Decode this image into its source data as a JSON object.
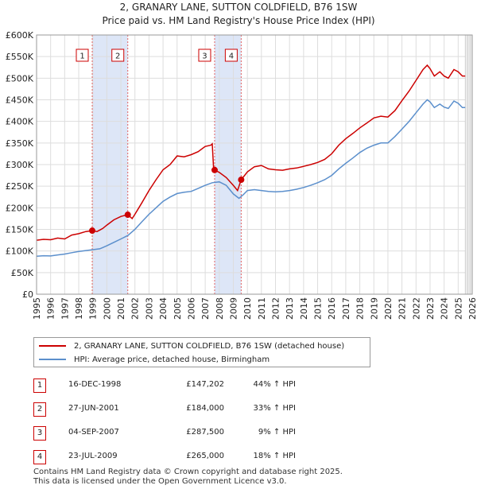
{
  "chart_data": {
    "type": "line",
    "title": "2, GRANARY LANE, SUTTON COLDFIELD, B76 1SW",
    "subtitle": "Price paid vs. HM Land Registry's House Price Index (HPI)",
    "xlim": [
      1995,
      2026
    ],
    "ylim": [
      0,
      600000
    ],
    "y_ticks": [
      0,
      50000,
      100000,
      150000,
      200000,
      250000,
      300000,
      350000,
      400000,
      450000,
      500000,
      550000,
      600000
    ],
    "y_tick_labels": [
      "£0",
      "£50K",
      "£100K",
      "£150K",
      "£200K",
      "£250K",
      "£300K",
      "£350K",
      "£400K",
      "£450K",
      "£500K",
      "£550K",
      "£600K"
    ],
    "x_tick_labels": [
      "1995",
      "1996",
      "1997",
      "1998",
      "1999",
      "2000",
      "2001",
      "2002",
      "2003",
      "2004",
      "2005",
      "2006",
      "2007",
      "2008",
      "2009",
      "2010",
      "2011",
      "2012",
      "2013",
      "2014",
      "2015",
      "2016",
      "2017",
      "2018",
      "2019",
      "2020",
      "2021",
      "2022",
      "2023",
      "2024",
      "2025",
      "2026"
    ],
    "series": [
      {
        "name": "2, GRANARY LANE, SUTTON COLDFIELD, B76 1SW (detached house)",
        "color": "#cc0000",
        "points": [
          [
            1995.0,
            125000
          ],
          [
            1995.5,
            127000
          ],
          [
            1996.0,
            126000
          ],
          [
            1996.5,
            130000
          ],
          [
            1997.0,
            128000
          ],
          [
            1997.5,
            137000
          ],
          [
            1998.0,
            140000
          ],
          [
            1998.5,
            145000
          ],
          [
            1998.96,
            147202
          ],
          [
            1999.3,
            145000
          ],
          [
            1999.7,
            152000
          ],
          [
            2000.0,
            160000
          ],
          [
            2000.5,
            172000
          ],
          [
            2001.0,
            180000
          ],
          [
            2001.49,
            184000
          ],
          [
            2001.8,
            175000
          ],
          [
            2002.0,
            185000
          ],
          [
            2002.5,
            212000
          ],
          [
            2003.0,
            240000
          ],
          [
            2003.5,
            265000
          ],
          [
            2004.0,
            288000
          ],
          [
            2004.5,
            300000
          ],
          [
            2005.0,
            320000
          ],
          [
            2005.5,
            318000
          ],
          [
            2006.0,
            323000
          ],
          [
            2006.5,
            330000
          ],
          [
            2007.0,
            342000
          ],
          [
            2007.4,
            345000
          ],
          [
            2007.5,
            348000
          ],
          [
            2007.6,
            290000
          ],
          [
            2007.67,
            287500
          ],
          [
            2008.0,
            282000
          ],
          [
            2008.5,
            270000
          ],
          [
            2009.0,
            252000
          ],
          [
            2009.3,
            240000
          ],
          [
            2009.56,
            265000
          ],
          [
            2010.0,
            283000
          ],
          [
            2010.5,
            295000
          ],
          [
            2011.0,
            298000
          ],
          [
            2011.5,
            290000
          ],
          [
            2012.0,
            288000
          ],
          [
            2012.5,
            287000
          ],
          [
            2013.0,
            290000
          ],
          [
            2013.5,
            292000
          ],
          [
            2014.0,
            296000
          ],
          [
            2014.5,
            300000
          ],
          [
            2015.0,
            305000
          ],
          [
            2015.5,
            312000
          ],
          [
            2016.0,
            325000
          ],
          [
            2016.5,
            345000
          ],
          [
            2017.0,
            360000
          ],
          [
            2017.5,
            372000
          ],
          [
            2018.0,
            385000
          ],
          [
            2018.5,
            396000
          ],
          [
            2019.0,
            408000
          ],
          [
            2019.5,
            412000
          ],
          [
            2020.0,
            410000
          ],
          [
            2020.5,
            425000
          ],
          [
            2021.0,
            448000
          ],
          [
            2021.5,
            470000
          ],
          [
            2022.0,
            495000
          ],
          [
            2022.5,
            520000
          ],
          [
            2022.8,
            530000
          ],
          [
            2023.0,
            522000
          ],
          [
            2023.3,
            505000
          ],
          [
            2023.7,
            515000
          ],
          [
            2024.0,
            505000
          ],
          [
            2024.3,
            500000
          ],
          [
            2024.7,
            520000
          ],
          [
            2025.0,
            515000
          ],
          [
            2025.3,
            505000
          ],
          [
            2025.5,
            505000
          ]
        ]
      },
      {
        "name": "HPI: Average price, detached house, Birmingham",
        "color": "#5b8fcc",
        "points": [
          [
            1995.0,
            88000
          ],
          [
            1995.5,
            89000
          ],
          [
            1996.0,
            88500
          ],
          [
            1996.5,
            91000
          ],
          [
            1997.0,
            93000
          ],
          [
            1997.5,
            96000
          ],
          [
            1998.0,
            99000
          ],
          [
            1998.5,
            101000
          ],
          [
            1999.0,
            103000
          ],
          [
            1999.5,
            105000
          ],
          [
            2000.0,
            112000
          ],
          [
            2000.5,
            120000
          ],
          [
            2001.0,
            128000
          ],
          [
            2001.5,
            136000
          ],
          [
            2002.0,
            150000
          ],
          [
            2002.5,
            168000
          ],
          [
            2003.0,
            185000
          ],
          [
            2003.5,
            200000
          ],
          [
            2004.0,
            215000
          ],
          [
            2004.5,
            225000
          ],
          [
            2005.0,
            233000
          ],
          [
            2005.5,
            236000
          ],
          [
            2006.0,
            238000
          ],
          [
            2006.5,
            245000
          ],
          [
            2007.0,
            252000
          ],
          [
            2007.5,
            258000
          ],
          [
            2008.0,
            260000
          ],
          [
            2008.5,
            252000
          ],
          [
            2009.0,
            232000
          ],
          [
            2009.4,
            222000
          ],
          [
            2009.7,
            230000
          ],
          [
            2010.0,
            240000
          ],
          [
            2010.5,
            242000
          ],
          [
            2011.0,
            240000
          ],
          [
            2011.5,
            238000
          ],
          [
            2012.0,
            237000
          ],
          [
            2012.5,
            238000
          ],
          [
            2013.0,
            240000
          ],
          [
            2013.5,
            243000
          ],
          [
            2014.0,
            247000
          ],
          [
            2014.5,
            252000
          ],
          [
            2015.0,
            258000
          ],
          [
            2015.5,
            265000
          ],
          [
            2016.0,
            275000
          ],
          [
            2016.5,
            290000
          ],
          [
            2017.0,
            303000
          ],
          [
            2017.5,
            315000
          ],
          [
            2018.0,
            328000
          ],
          [
            2018.5,
            338000
          ],
          [
            2019.0,
            345000
          ],
          [
            2019.5,
            350000
          ],
          [
            2020.0,
            350000
          ],
          [
            2020.5,
            365000
          ],
          [
            2021.0,
            382000
          ],
          [
            2021.5,
            400000
          ],
          [
            2022.0,
            420000
          ],
          [
            2022.5,
            440000
          ],
          [
            2022.8,
            450000
          ],
          [
            2023.0,
            445000
          ],
          [
            2023.3,
            432000
          ],
          [
            2023.7,
            440000
          ],
          [
            2024.0,
            433000
          ],
          [
            2024.3,
            430000
          ],
          [
            2024.7,
            447000
          ],
          [
            2025.0,
            442000
          ],
          [
            2025.3,
            432000
          ],
          [
            2025.5,
            432000
          ]
        ]
      }
    ],
    "sales": [
      {
        "id": "1",
        "x": 1998.96,
        "value": 147202
      },
      {
        "id": "2",
        "x": 2001.49,
        "value": 184000
      },
      {
        "id": "3",
        "x": 2007.67,
        "value": 287500
      },
      {
        "id": "4",
        "x": 2009.56,
        "value": 265000
      }
    ],
    "shaded_periods": [
      [
        1998.96,
        2001.49
      ],
      [
        2007.67,
        2009.56
      ]
    ],
    "forecast_start": 2025.5
  },
  "legend": {
    "property_label": "2, GRANARY LANE, SUTTON COLDFIELD, B76 1SW (detached house)",
    "hpi_label": "HPI: Average price, detached house, Birmingham"
  },
  "transactions": [
    {
      "num": "1",
      "date": "16-DEC-1998",
      "price": "£147,202",
      "hpi": "44% ↑ HPI"
    },
    {
      "num": "2",
      "date": "27-JUN-2001",
      "price": "£184,000",
      "hpi": "33% ↑ HPI"
    },
    {
      "num": "3",
      "date": "04-SEP-2007",
      "price": "£287,500",
      "hpi": "9% ↑ HPI"
    },
    {
      "num": "4",
      "date": "23-JUL-2009",
      "price": "£265,000",
      "hpi": "18% ↑ HPI"
    }
  ],
  "footer": {
    "line1": "Contains HM Land Registry data © Crown copyright and database right 2025.",
    "line2": "This data is licensed under the Open Government Licence v3.0."
  },
  "colors": {
    "property": "#cc0000",
    "hpi": "#5b8fcc",
    "shade": "#dde6f7",
    "grid": "#dddddd"
  }
}
